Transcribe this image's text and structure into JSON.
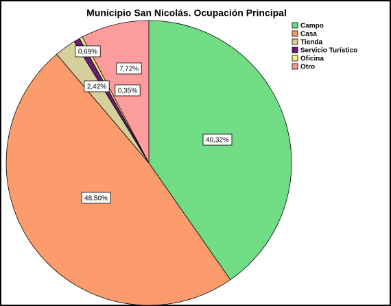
{
  "chart_data": {
    "type": "pie",
    "title": "Municipio San Nicolás. Ocupación Principal",
    "categories": [
      "Campo",
      "Casa",
      "Tienda",
      "Servicio Turístico",
      "Oficina",
      "Otro"
    ],
    "values": [
      40.32,
      48.5,
      2.42,
      0.69,
      0.35,
      7.72
    ],
    "value_labels": [
      "40,32%",
      "48,50%",
      "2,42%",
      "0,69%",
      "0,35%",
      "7,72%"
    ],
    "colors": [
      "#70dc84",
      "#fc9c6c",
      "#d6d09c",
      "#6c1c74",
      "#f4f47c",
      "#fc9c9c"
    ],
    "legend": "top-right"
  }
}
